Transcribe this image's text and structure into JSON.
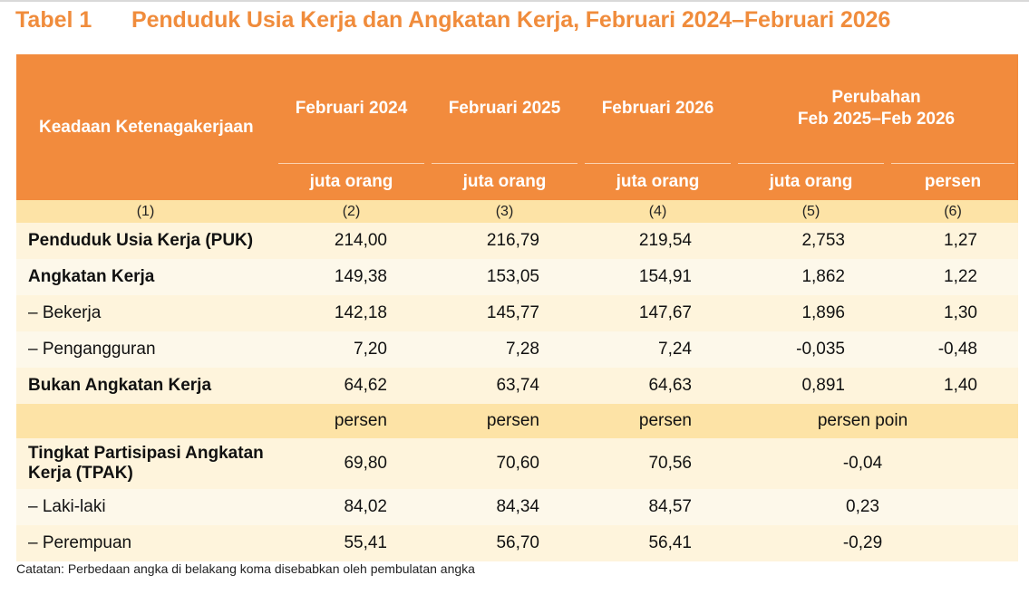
{
  "title": {
    "label": "Tabel 1",
    "text": "Penduduk Usia Kerja dan Angkatan Kerja, Februari 2024–Februari 2026"
  },
  "header": {
    "stub": "Keadaan Ketenagakerjaan",
    "columns": [
      "Februari 2024",
      "Februari 2025",
      "Februari 2026"
    ],
    "change_line1": "Perubahan",
    "change_line2": "Feb 2025–Feb 2026",
    "units": [
      "juta orang",
      "juta orang",
      "juta orang",
      "juta orang",
      "persen"
    ],
    "col_numbers": [
      "(1)",
      "(2)",
      "(3)",
      "(4)",
      "(5)",
      "(6)"
    ]
  },
  "rows": [
    {
      "label": "Penduduk Usia Kerja (PUK)",
      "values": [
        "214,00",
        "216,79",
        "219,54",
        "2,753",
        "1,27"
      ]
    },
    {
      "label": "Angkatan Kerja",
      "values": [
        "149,38",
        "153,05",
        "154,91",
        "1,862",
        "1,22"
      ]
    },
    {
      "label": "– Bekerja",
      "values": [
        "142,18",
        "145,77",
        "147,67",
        "1,896",
        "1,30"
      ]
    },
    {
      "label": "– Pengangguran",
      "values": [
        "7,20",
        "7,28",
        "7,24",
        "-0,035",
        "-0,48"
      ]
    },
    {
      "label": "Bukan Angkatan Kerja",
      "values": [
        "64,62",
        "63,74",
        "64,63",
        "0,891",
        "1,40"
      ]
    }
  ],
  "unit_row": [
    "persen",
    "persen",
    "persen",
    "persen poin"
  ],
  "rows2": [
    {
      "label_line1": "Tingkat Partisipasi Angkatan",
      "label_line2": "Kerja (TPAK)",
      "values": [
        "69,80",
        "70,60",
        "70,56",
        "-0,04"
      ]
    },
    {
      "label": "– Laki-laki",
      "values": [
        "84,02",
        "84,34",
        "84,57",
        "0,23"
      ]
    },
    {
      "label": "– Perempuan",
      "values": [
        "55,41",
        "56,70",
        "56,41",
        "-0,29"
      ]
    }
  ],
  "note": "Catatan: Perbedaan angka di belakang koma disebabkan oleh pembulatan angka",
  "colors": {
    "accent": "#f28b3d",
    "title": "#f08c3c",
    "band": "#fde3a6",
    "row_a": "#fef4dc",
    "row_b": "#fdf8ea"
  }
}
